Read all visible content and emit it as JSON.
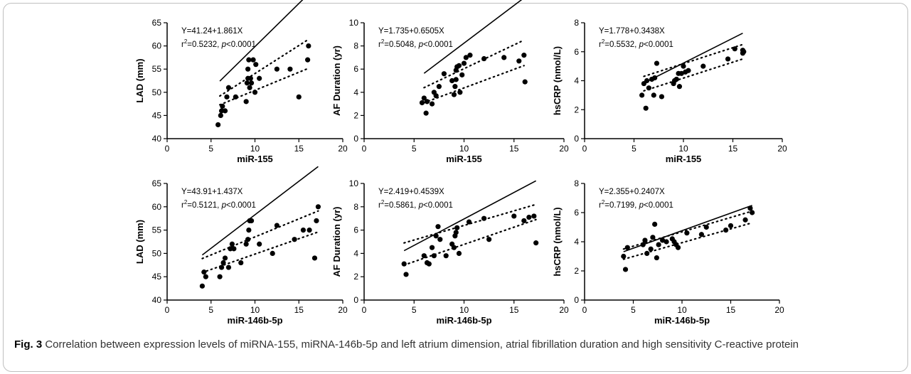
{
  "figure": {
    "caption_label": "Fig. 3",
    "caption_text": "Correlation between expression levels of miRNA-155, miRNA-146b-5p and left atrium dimension, atrial fibrillation duration and high sensitivity C-reactive protein"
  },
  "chart_data": [
    {
      "type": "scatter",
      "xlabel": "miR-155",
      "ylabel": "LAD (mm)",
      "xlim": [
        0,
        20
      ],
      "ylim": [
        40,
        65
      ],
      "xticks": [
        0,
        5,
        10,
        15,
        20
      ],
      "yticks": [
        40,
        45,
        50,
        55,
        60,
        65
      ],
      "annotation": {
        "equation": "Y=41.24+1.861X",
        "r2": "0.5232",
        "p": "<0.0001"
      },
      "fit": {
        "intercept": 41.24,
        "slope": 1.861
      },
      "ci_band": {
        "start": [
          6,
          [
            49.2,
            47.3
          ]
        ],
        "end": [
          16,
          [
            61.3,
            55.1
          ]
        ]
      },
      "x": [
        5.8,
        6.1,
        6.2,
        6.3,
        6.6,
        6.8,
        7.0,
        7.8,
        9.0,
        9.1,
        9.2,
        9.2,
        9.3,
        9.4,
        9.5,
        9.6,
        9.8,
        10.0,
        10.1,
        10.5,
        12.5,
        14.0,
        15.0,
        16.0,
        16.1
      ],
      "y": [
        43,
        45,
        46,
        47,
        46,
        49,
        51,
        49,
        48,
        52,
        53,
        55,
        57,
        51,
        53,
        52,
        57,
        50,
        56,
        53,
        55,
        55,
        49,
        57,
        60
      ]
    },
    {
      "type": "scatter",
      "xlabel": "miR-155",
      "ylabel": "AF Duration (yr)",
      "xlim": [
        0,
        20
      ],
      "ylim": [
        0,
        10
      ],
      "xticks": [
        0,
        5,
        10,
        15,
        20
      ],
      "yticks": [
        0,
        2,
        4,
        6,
        8,
        10
      ],
      "annotation": {
        "equation": "Y=1.735+0.6505X",
        "r2": "0.5048",
        "p": "<0.0001"
      },
      "fit": {
        "intercept": 1.735,
        "slope": 0.6505
      },
      "ci_band": {
        "start": [
          6,
          [
            4.4,
            3.1
          ]
        ],
        "end": [
          16,
          [
            8.5,
            6.3
          ]
        ]
      },
      "x": [
        5.8,
        6.0,
        6.2,
        6.3,
        6.8,
        7.0,
        7.2,
        7.5,
        8.0,
        8.8,
        9.0,
        9.1,
        9.2,
        9.2,
        9.3,
        9.5,
        9.6,
        9.8,
        10.0,
        10.2,
        10.6,
        12.0,
        14.0,
        15.5,
        16.0,
        16.1
      ],
      "y": [
        3.1,
        3.5,
        2.2,
        3.2,
        3.0,
        4.0,
        3.7,
        4.5,
        5.6,
        5.0,
        3.8,
        4.5,
        5.1,
        5.9,
        6.2,
        6.3,
        4.0,
        5.5,
        6.5,
        7.0,
        7.2,
        6.9,
        7.0,
        6.7,
        7.2,
        4.9
      ]
    },
    {
      "type": "scatter",
      "xlabel": "miR-155",
      "ylabel": "hsCRP (nmol/L)",
      "xlim": [
        0,
        20
      ],
      "ylim": [
        0,
        8
      ],
      "xticks": [
        0,
        5,
        10,
        15,
        20
      ],
      "yticks": [
        0,
        2,
        4,
        6,
        8
      ],
      "annotation": {
        "equation": "Y=1.778+0.3438X",
        "r2": "0.5532",
        "p": "<0.0001"
      },
      "fit": {
        "intercept": 1.778,
        "slope": 0.3438
      },
      "ci_band": {
        "start": [
          6,
          [
            4.3,
            3.3
          ]
        ],
        "end": [
          16,
          [
            6.5,
            5.5
          ]
        ]
      },
      "x": [
        5.8,
        6.0,
        6.2,
        6.3,
        6.5,
        6.8,
        7.0,
        7.1,
        7.3,
        7.8,
        9.0,
        9.1,
        9.3,
        9.5,
        9.6,
        9.8,
        10.0,
        10.2,
        10.5,
        12.0,
        14.5,
        15.2,
        16.0,
        16.0,
        16.1
      ],
      "y": [
        3.0,
        3.8,
        2.1,
        4.0,
        3.5,
        4.1,
        3.0,
        4.2,
        5.2,
        2.9,
        3.8,
        4.0,
        4.1,
        4.5,
        3.6,
        4.5,
        5.0,
        4.6,
        4.7,
        5.0,
        5.5,
        6.2,
        5.9,
        6.1,
        6.0
      ]
    },
    {
      "type": "scatter",
      "xlabel": "miR-146b-5p",
      "ylabel": "LAD (mm)",
      "xlim": [
        0,
        20
      ],
      "ylim": [
        40,
        65
      ],
      "xticks": [
        0,
        5,
        10,
        15,
        20
      ],
      "yticks": [
        40,
        45,
        50,
        55,
        60,
        65
      ],
      "annotation": {
        "equation": "Y=43.91+1.437X",
        "r2": "0.5121",
        "p": "<0.0001"
      },
      "fit": {
        "intercept": 43.91,
        "slope": 1.437
      },
      "ci_band": {
        "start": [
          4,
          [
            48.9,
            45.9
          ]
        ],
        "end": [
          17.2,
          [
            59.1,
            54.6
          ]
        ]
      },
      "x": [
        4.0,
        4.2,
        4.4,
        6.0,
        6.2,
        6.4,
        6.6,
        7.0,
        7.2,
        7.4,
        7.6,
        8.4,
        9.0,
        9.2,
        9.3,
        9.4,
        9.6,
        10.5,
        12.0,
        12.5,
        14.5,
        15.5,
        16.2,
        16.8,
        17.0,
        17.2
      ],
      "y": [
        43,
        46,
        45,
        45,
        47,
        48,
        49,
        47,
        51,
        52,
        51,
        48,
        52,
        53,
        55,
        57,
        57,
        52,
        50,
        56,
        53,
        55,
        55,
        49,
        57,
        60
      ]
    },
    {
      "type": "scatter",
      "xlabel": "miR-146b-5p",
      "ylabel": "AF Duration (yr)",
      "xlim": [
        0,
        20
      ],
      "ylim": [
        0,
        10
      ],
      "xticks": [
        0,
        5,
        10,
        15,
        20
      ],
      "yticks": [
        0,
        2,
        4,
        6,
        8,
        10
      ],
      "annotation": {
        "equation": "Y=2.419+0.4539X",
        "r2": "0.5861",
        "p": "<0.0001"
      },
      "fit": {
        "intercept": 2.419,
        "slope": 0.4539
      },
      "ci_band": {
        "start": [
          4,
          [
            4.9,
            3.0
          ]
        ],
        "end": [
          17.2,
          [
            8.2,
            6.9
          ]
        ]
      },
      "x": [
        4.0,
        4.2,
        6.0,
        6.3,
        6.5,
        6.8,
        7.0,
        7.2,
        7.4,
        7.6,
        8.2,
        8.8,
        9.0,
        9.1,
        9.2,
        9.3,
        9.5,
        10.5,
        12.0,
        12.5,
        15.0,
        16.0,
        16.5,
        17.0,
        17.2
      ],
      "y": [
        3.1,
        2.2,
        3.8,
        3.2,
        3.1,
        4.5,
        3.8,
        5.5,
        6.3,
        5.2,
        3.8,
        4.8,
        4.5,
        5.5,
        5.8,
        6.2,
        4.0,
        6.7,
        7.0,
        5.2,
        7.2,
        6.8,
        7.1,
        7.2,
        4.9
      ]
    },
    {
      "type": "scatter",
      "xlabel": "miR-146b-5p",
      "ylabel": "hsCRP (nmol/L)",
      "xlim": [
        0,
        20
      ],
      "ylim": [
        0,
        8
      ],
      "xticks": [
        0,
        5,
        10,
        15,
        20
      ],
      "yticks": [
        0,
        2,
        4,
        6,
        8
      ],
      "annotation": {
        "equation": "Y=2.355+0.2407X",
        "r2": "0.7199",
        "p": "<0.0001"
      },
      "fit": {
        "intercept": 2.355,
        "slope": 0.2407
      },
      "ci_band": {
        "start": [
          4,
          [
            3.5,
            2.8
          ]
        ],
        "end": [
          17.2,
          [
            6.1,
            5.3
          ]
        ]
      },
      "x": [
        4.0,
        4.2,
        4.4,
        6.0,
        6.2,
        6.4,
        6.8,
        7.0,
        7.2,
        7.4,
        7.6,
        8.0,
        8.4,
        9.0,
        9.2,
        9.4,
        9.6,
        10.5,
        12.0,
        12.5,
        14.5,
        15.0,
        16.5,
        17.0,
        17.2
      ],
      "y": [
        3.0,
        2.1,
        3.6,
        3.8,
        4.1,
        3.2,
        3.5,
        4.3,
        5.2,
        2.9,
        3.8,
        4.1,
        4.0,
        4.2,
        4.0,
        3.8,
        3.6,
        4.6,
        4.5,
        5.0,
        4.8,
        5.1,
        5.5,
        6.3,
        6.0
      ]
    }
  ]
}
